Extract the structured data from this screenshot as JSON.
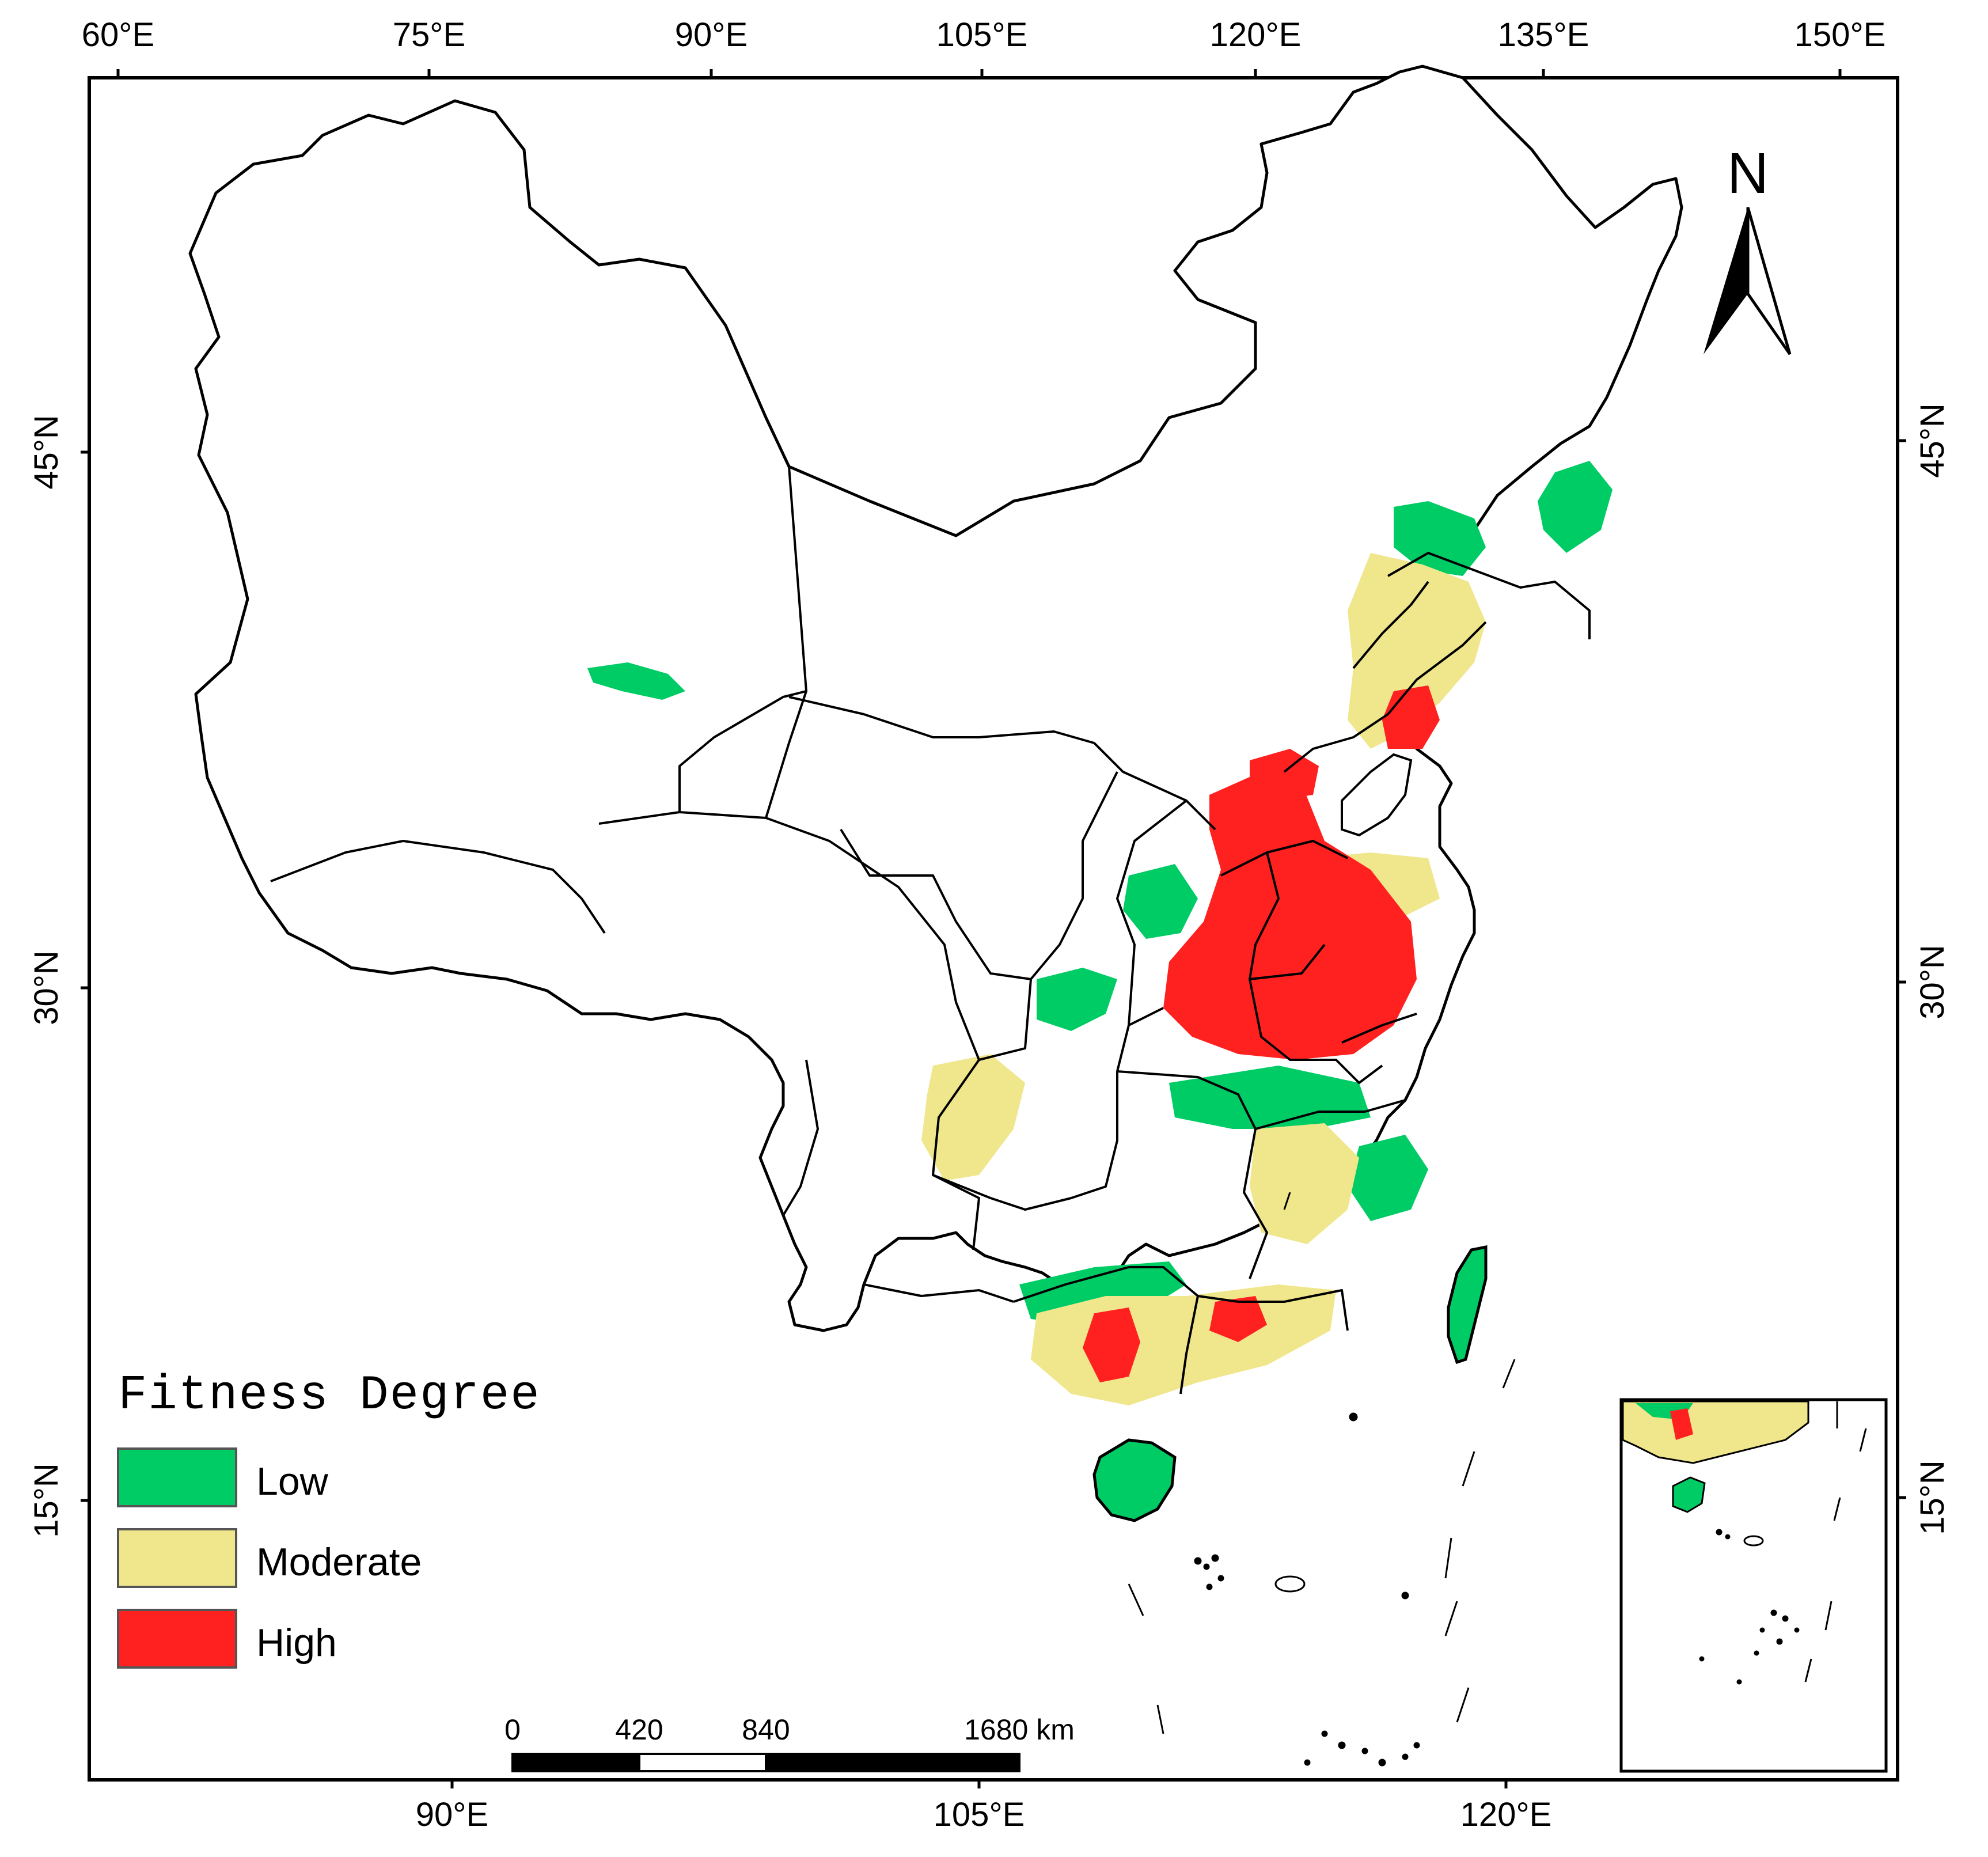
{
  "top_axis": [
    "60°E",
    "75°E",
    "90°E",
    "105°E",
    "120°E",
    "135°E",
    "150°E"
  ],
  "bottom_axis": [
    "90°E",
    "105°E",
    "120°E"
  ],
  "left_axis": [
    "45°N",
    "30°N",
    "15°N"
  ],
  "right_axis": [
    "45°N",
    "30°N",
    "15°N"
  ],
  "north_arrow": {
    "label": "N"
  },
  "legend": {
    "title": "Fitness Degree",
    "items": [
      {
        "label": "Low",
        "color": "#00cc66"
      },
      {
        "label": "Moderate",
        "color": "#f0e68c"
      },
      {
        "label": "High",
        "color": "#ff2020"
      }
    ]
  },
  "scale_bar": {
    "labels": [
      "0",
      "420",
      "840",
      "1680 km"
    ]
  },
  "colors": {
    "low": "#00cc66",
    "moderate": "#f0e68c",
    "high": "#ff2020",
    "outline": "#000000"
  }
}
